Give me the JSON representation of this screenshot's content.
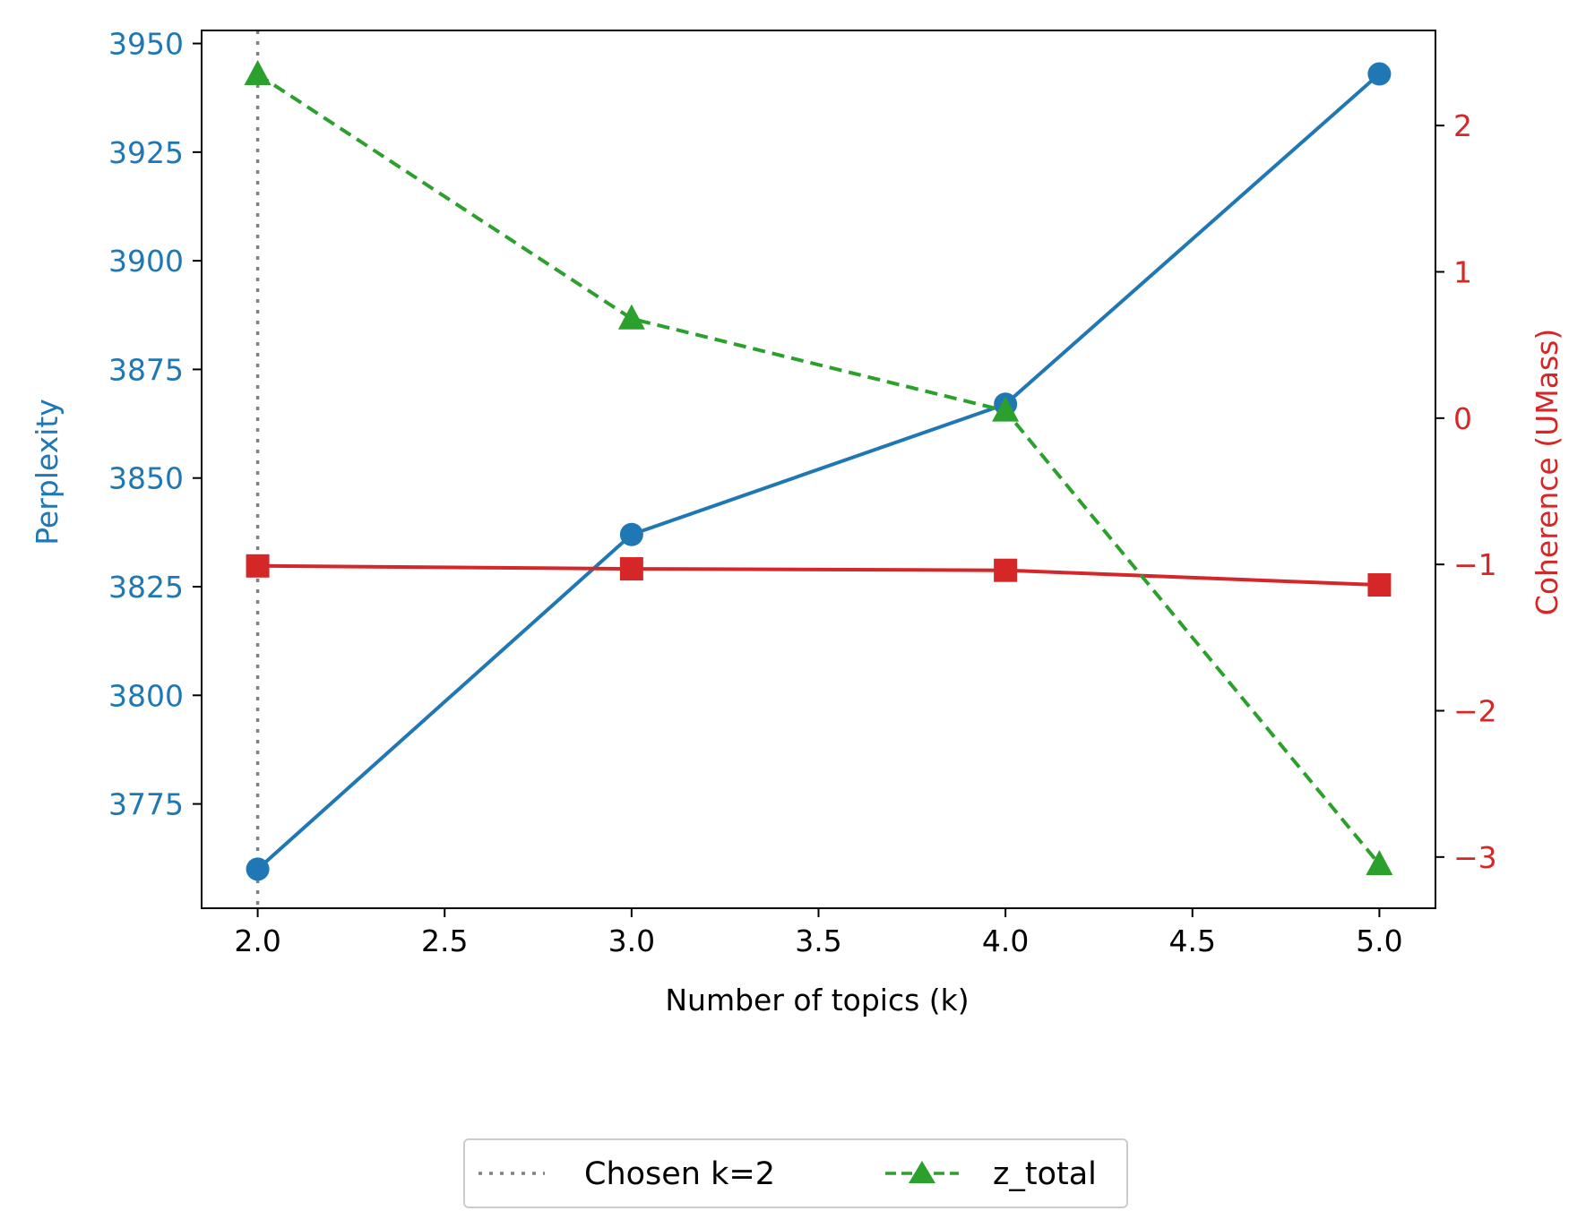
{
  "chart_data": {
    "type": "line",
    "x": [
      2.0,
      3.0,
      4.0,
      5.0
    ],
    "xlabel": "Number of topics (k)",
    "xlim": [
      1.85,
      5.15
    ],
    "xticks": [
      "2.0",
      "2.5",
      "3.0",
      "3.5",
      "4.0",
      "4.5",
      "5.0"
    ],
    "left_axis": {
      "label": "Perplexity",
      "color": "#1f77b4",
      "ylim": [
        3751,
        3953
      ],
      "ticks": [
        "3775",
        "3800",
        "3825",
        "3850",
        "3875",
        "3900",
        "3925",
        "3950"
      ]
    },
    "right_axis": {
      "label": "Coherence (UMass)",
      "color": "#d62728",
      "ylim": [
        -3.35,
        2.65
      ],
      "ticks": [
        "−3",
        "−2",
        "−1",
        "0",
        "1",
        "2"
      ]
    },
    "series": [
      {
        "name": "Perplexity",
        "axis": "left",
        "color": "#1f77b4",
        "marker": "circle",
        "style": "solid",
        "values": [
          3760,
          3837,
          3867,
          3943
        ]
      },
      {
        "name": "Coherence (UMass)",
        "axis": "right",
        "color": "#d62728",
        "marker": "square",
        "style": "solid",
        "values": [
          -1.01,
          -1.03,
          -1.04,
          -1.14
        ]
      },
      {
        "name": "z_total",
        "axis": "right",
        "color": "#2ca02c",
        "marker": "triangle",
        "style": "dashed",
        "values": [
          2.35,
          0.68,
          0.05,
          -3.05
        ]
      }
    ],
    "vline": {
      "x": 2.0,
      "label": "Chosen k=2",
      "color": "#808080",
      "style": "dotted"
    },
    "legend": {
      "position": "bottom-center",
      "entries": [
        {
          "label": "Chosen k=2",
          "kind": "vline"
        },
        {
          "label": "z_total",
          "kind": "series"
        }
      ]
    }
  }
}
